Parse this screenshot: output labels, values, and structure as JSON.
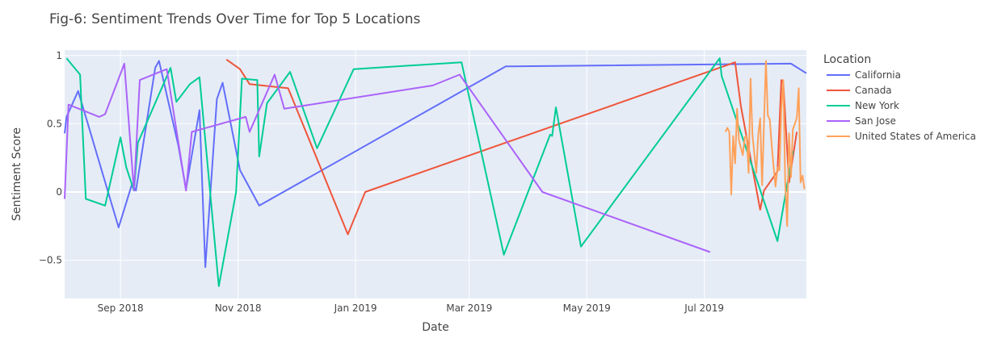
{
  "chart_data": {
    "type": "line",
    "title": "Fig-6: Sentiment Trends Over Time for Top 5 Locations",
    "xlabel": "Date",
    "ylabel": "Sentiment Score",
    "xlim": [
      "2018-08-03",
      "2019-08-23"
    ],
    "ylim": [
      -0.78,
      1.04
    ],
    "x_ticks": [
      {
        "date": "2018-09-01",
        "label": "Sep 2018"
      },
      {
        "date": "2018-11-01",
        "label": "Nov 2018"
      },
      {
        "date": "2019-01-01",
        "label": "Jan 2019"
      },
      {
        "date": "2019-03-01",
        "label": "Mar 2019"
      },
      {
        "date": "2019-05-01",
        "label": "May 2019"
      },
      {
        "date": "2019-07-01",
        "label": "Jul 2019"
      }
    ],
    "y_ticks": [
      {
        "value": -0.5,
        "label": "−0.5"
      },
      {
        "value": 0,
        "label": "0"
      },
      {
        "value": 0.5,
        "label": "0.5"
      },
      {
        "value": 1,
        "label": "1"
      }
    ],
    "grid": true,
    "legend": {
      "title": "Location",
      "placement": "right"
    },
    "series": [
      {
        "name": "California",
        "color": "#636efa",
        "points": [
          [
            "2018-08-03",
            0.43
          ],
          [
            "2018-08-04",
            0.55
          ],
          [
            "2018-08-10",
            0.74
          ],
          [
            "2018-08-31",
            -0.26
          ],
          [
            "2018-09-07",
            0.06
          ],
          [
            "2018-09-09",
            0.01
          ],
          [
            "2018-09-19",
            0.91
          ],
          [
            "2018-09-21",
            0.96
          ],
          [
            "2018-10-01",
            0.34
          ],
          [
            "2018-10-05",
            0.02
          ],
          [
            "2018-10-12",
            0.6
          ],
          [
            "2018-10-15",
            -0.55
          ],
          [
            "2018-10-21",
            0.68
          ],
          [
            "2018-10-24",
            0.8
          ],
          [
            "2018-11-02",
            0.16
          ],
          [
            "2018-11-12",
            -0.1
          ],
          [
            "2019-03-20",
            0.92
          ],
          [
            "2019-08-15",
            0.94
          ],
          [
            "2019-08-23",
            0.87
          ]
        ]
      },
      {
        "name": "Canada",
        "color": "#ef553b",
        "points": [
          [
            "2018-10-26",
            0.97
          ],
          [
            "2018-11-02",
            0.9
          ],
          [
            "2018-11-07",
            0.79
          ],
          [
            "2018-11-27",
            0.76
          ],
          [
            "2018-12-28",
            -0.31
          ],
          [
            "2019-01-06",
            0.0
          ],
          [
            "2019-07-17",
            0.95
          ],
          [
            "2019-07-20",
            0.63
          ],
          [
            "2019-07-30",
            -0.13
          ],
          [
            "2019-08-01",
            0.01
          ],
          [
            "2019-08-08",
            0.15
          ],
          [
            "2019-08-10",
            0.82
          ],
          [
            "2019-08-11",
            0.8
          ],
          [
            "2019-08-14",
            0.07
          ],
          [
            "2019-08-18",
            0.44
          ]
        ]
      },
      {
        "name": "New York",
        "color": "#00cc96",
        "points": [
          [
            "2018-08-04",
            0.98
          ],
          [
            "2018-08-11",
            0.86
          ],
          [
            "2018-08-14",
            -0.05
          ],
          [
            "2018-08-24",
            -0.1
          ],
          [
            "2018-09-01",
            0.4
          ],
          [
            "2018-09-04",
            0.18
          ],
          [
            "2018-09-08",
            0.01
          ],
          [
            "2018-09-10",
            0.36
          ],
          [
            "2018-09-27",
            0.91
          ],
          [
            "2018-09-30",
            0.66
          ],
          [
            "2018-10-07",
            0.79
          ],
          [
            "2018-10-12",
            0.84
          ],
          [
            "2018-10-22",
            -0.69
          ],
          [
            "2018-10-31",
            0.0
          ],
          [
            "2018-11-03",
            0.83
          ],
          [
            "2018-11-11",
            0.82
          ],
          [
            "2018-11-12",
            0.26
          ],
          [
            "2018-11-16",
            0.65
          ],
          [
            "2018-11-28",
            0.88
          ],
          [
            "2018-12-12",
            0.32
          ],
          [
            "2018-12-31",
            0.9
          ],
          [
            "2019-02-25",
            0.95
          ],
          [
            "2019-03-19",
            -0.46
          ],
          [
            "2019-04-12",
            0.42
          ],
          [
            "2019-04-13",
            0.41
          ],
          [
            "2019-04-15",
            0.62
          ],
          [
            "2019-04-28",
            -0.4
          ],
          [
            "2019-07-09",
            0.98
          ],
          [
            "2019-07-10",
            0.85
          ],
          [
            "2019-08-08",
            -0.36
          ],
          [
            "2019-08-16",
            0.3
          ]
        ]
      },
      {
        "name": "San Jose",
        "color": "#ab63fa",
        "points": [
          [
            "2018-08-03",
            -0.05
          ],
          [
            "2018-08-05",
            0.64
          ],
          [
            "2018-08-21",
            0.55
          ],
          [
            "2018-08-24",
            0.57
          ],
          [
            "2018-09-03",
            0.94
          ],
          [
            "2018-09-08",
            0.01
          ],
          [
            "2018-09-11",
            0.82
          ],
          [
            "2018-09-25",
            0.9
          ],
          [
            "2018-10-05",
            0.01
          ],
          [
            "2018-10-08",
            0.44
          ],
          [
            "2018-11-05",
            0.55
          ],
          [
            "2018-11-07",
            0.44
          ],
          [
            "2018-11-20",
            0.86
          ],
          [
            "2018-11-25",
            0.61
          ],
          [
            "2019-02-10",
            0.78
          ],
          [
            "2019-02-24",
            0.86
          ],
          [
            "2019-04-08",
            0.0
          ],
          [
            "2019-07-04",
            -0.44
          ]
        ]
      },
      {
        "name": "United States of America",
        "color": "#ffa15a",
        "points": [
          [
            "2019-07-12",
            0.44
          ],
          [
            "2019-07-13",
            0.47
          ],
          [
            "2019-07-14",
            0.44
          ],
          [
            "2019-07-15",
            -0.02
          ],
          [
            "2019-07-16",
            0.41
          ],
          [
            "2019-07-17",
            0.21
          ],
          [
            "2019-07-18",
            0.61
          ],
          [
            "2019-07-19",
            0.38
          ],
          [
            "2019-07-21",
            0.27
          ],
          [
            "2019-07-22",
            0.4
          ],
          [
            "2019-07-23",
            0.41
          ],
          [
            "2019-07-24",
            0.14
          ],
          [
            "2019-07-25",
            0.83
          ],
          [
            "2019-07-26",
            0.42
          ],
          [
            "2019-07-28",
            0.14
          ],
          [
            "2019-07-29",
            0.42
          ],
          [
            "2019-07-30",
            0.54
          ],
          [
            "2019-07-31",
            0.05
          ],
          [
            "2019-08-02",
            0.96
          ],
          [
            "2019-08-03",
            0.56
          ],
          [
            "2019-08-04",
            0.53
          ],
          [
            "2019-08-05",
            0.34
          ],
          [
            "2019-08-06",
            0.18
          ],
          [
            "2019-08-07",
            0.04
          ],
          [
            "2019-08-08",
            0.18
          ],
          [
            "2019-08-09",
            0.16
          ],
          [
            "2019-08-10",
            0.61
          ],
          [
            "2019-08-11",
            0.82
          ],
          [
            "2019-08-12",
            0.07
          ],
          [
            "2019-08-13",
            -0.25
          ],
          [
            "2019-08-14",
            0.43
          ],
          [
            "2019-08-15",
            0.11
          ],
          [
            "2019-08-16",
            0.46
          ],
          [
            "2019-08-17",
            0.5
          ],
          [
            "2019-08-18",
            0.54
          ],
          [
            "2019-08-19",
            0.76
          ],
          [
            "2019-08-20",
            0.07
          ],
          [
            "2019-08-21",
            0.12
          ],
          [
            "2019-08-22",
            0.02
          ]
        ]
      }
    ]
  }
}
